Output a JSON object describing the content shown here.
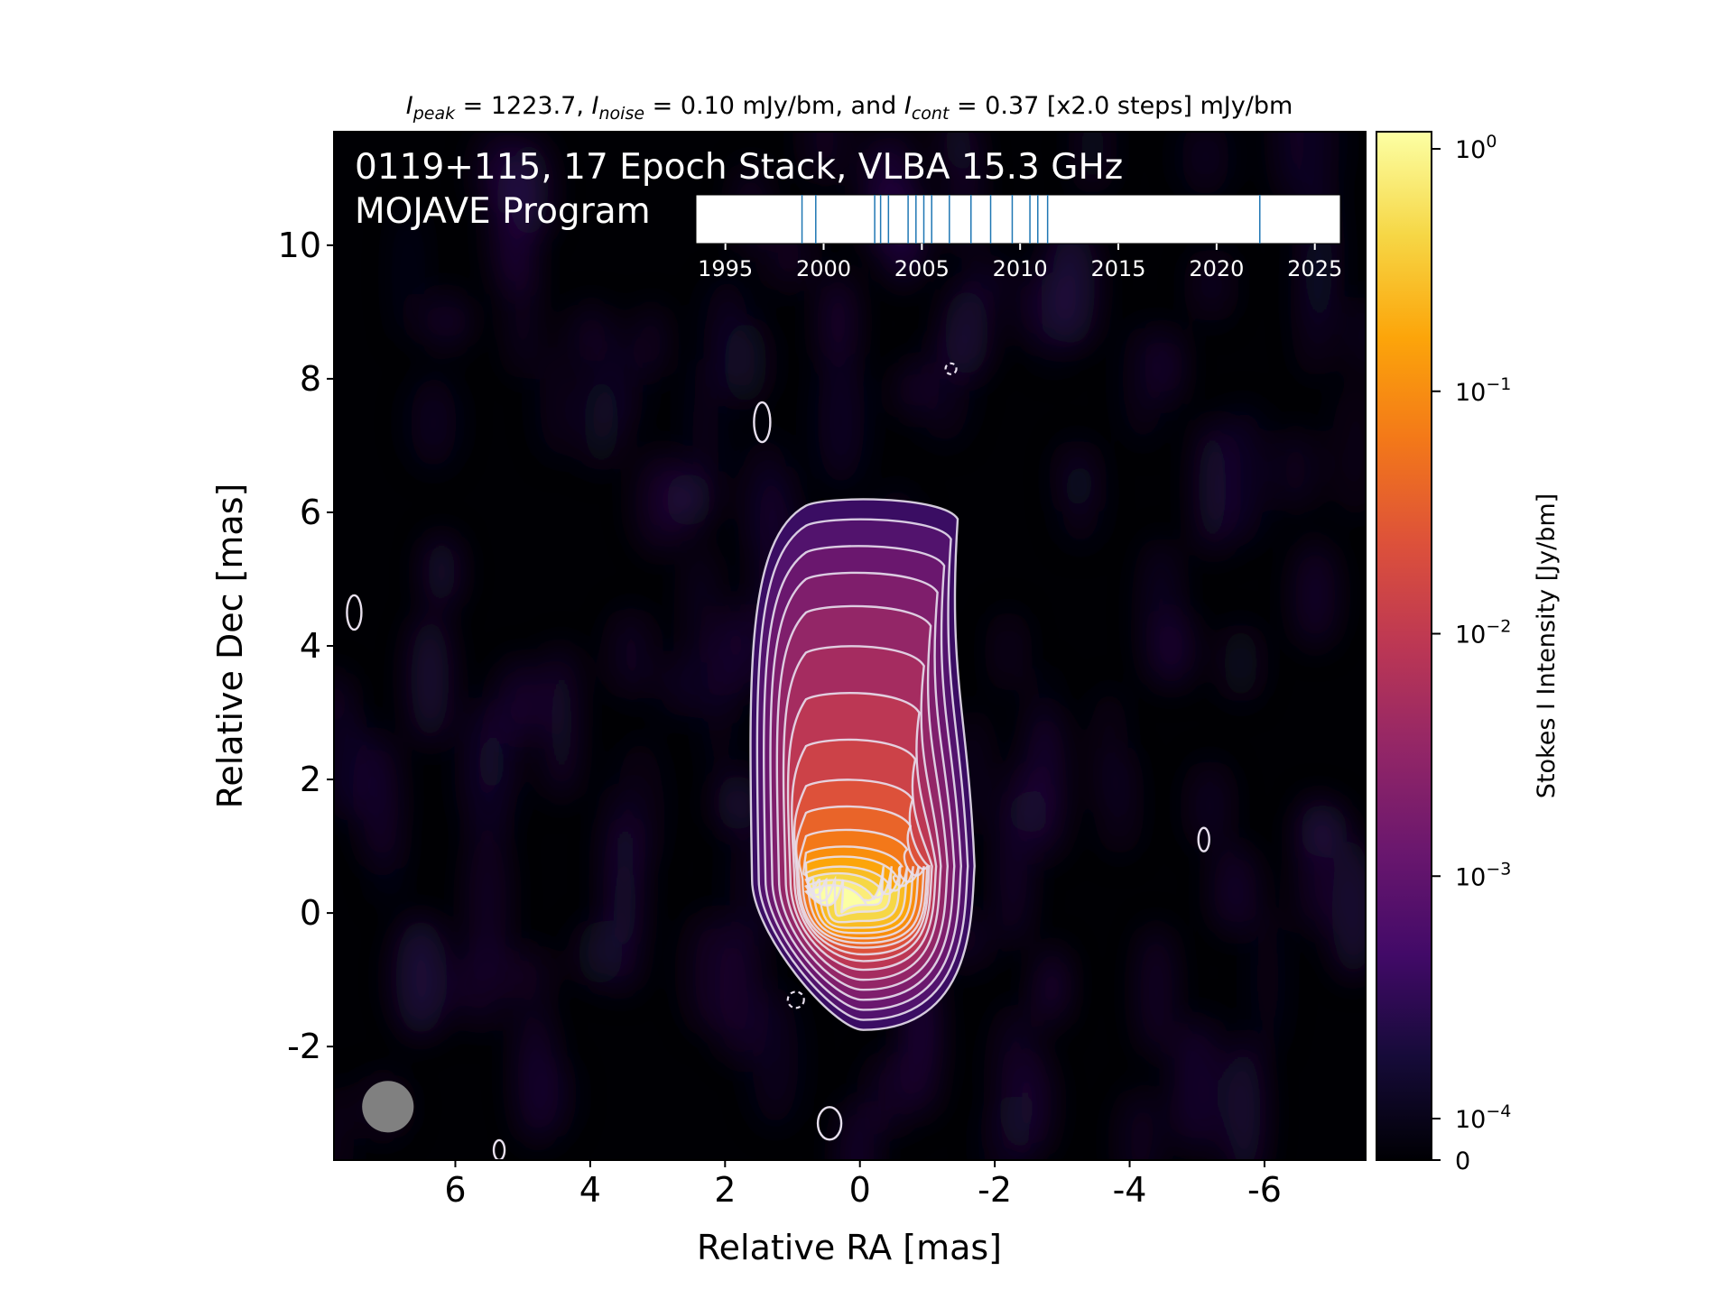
{
  "chart_data": {
    "type": "heatmap",
    "title": {
      "pre": "I",
      "peak_sub": "peak",
      "peak_value": " = 1223.7, ",
      "noise_sub": "noise",
      "noise_value": " = 0.10 mJy/bm, and ",
      "cont_sub": "cont",
      "cont_value": " = 0.37 [x2.0 steps] mJy/bm"
    },
    "annotation": {
      "line1": "0119+115, 17 Epoch Stack, VLBA 15.3 GHz",
      "line2": "MOJAVE Program"
    },
    "xlabel": "Relative RA [mas]",
    "ylabel": "Relative Dec [mas]",
    "xlim": [
      7.8,
      -7.5
    ],
    "ylim": [
      -3.7,
      11.7
    ],
    "xticks": [
      6,
      4,
      2,
      0,
      -2,
      -4,
      -6
    ],
    "yticks": [
      -2,
      0,
      2,
      4,
      6,
      8,
      10
    ],
    "colorbar": {
      "label": "Stokes I Intensity [Jy/bm]",
      "scale": "log",
      "ticks": [
        {
          "value": 1.0,
          "base": "10",
          "exp": "0"
        },
        {
          "value": 0.1,
          "base": "10",
          "exp": "−1"
        },
        {
          "value": 0.01,
          "base": "10",
          "exp": "−2"
        },
        {
          "value": 0.001,
          "base": "10",
          "exp": "−3"
        },
        {
          "value": 0.0001,
          "base": "10",
          "exp": "−4"
        },
        {
          "value": 0,
          "base": "0",
          "exp": ""
        }
      ],
      "colormap": "inferno"
    },
    "epoch_timeline": {
      "xlim": [
        1993.5,
        2026.3
      ],
      "ticks": [
        1995,
        2000,
        2005,
        2010,
        2015,
        2020,
        2025
      ],
      "epochs": [
        1998.9,
        1999.6,
        2002.6,
        2002.9,
        2003.3,
        2004.3,
        2004.7,
        2005.1,
        2005.5,
        2006.4,
        2007.5,
        2008.5,
        2009.6,
        2010.5,
        2010.9,
        2011.4,
        2022.2
      ]
    },
    "beam": {
      "ra": 7.0,
      "dec": -2.9,
      "major_mas": 0.85,
      "minor_mas": 0.85,
      "color": "#808080"
    },
    "peak": {
      "ra": -0.1,
      "dec": 0.3
    },
    "contour_color": "#e8e0ee"
  }
}
